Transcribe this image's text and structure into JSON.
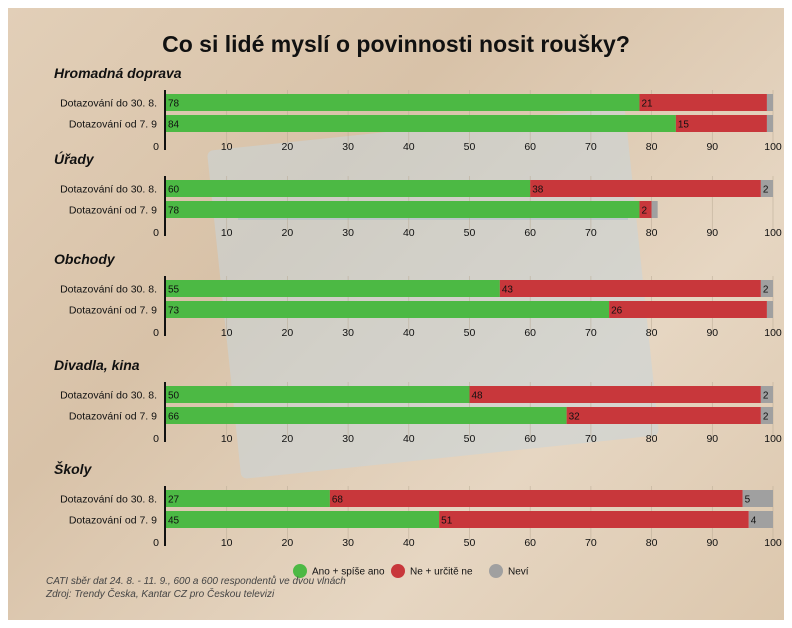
{
  "colors": {
    "yes": "#4cb944",
    "no": "#c8373b",
    "dontknow": "#a0a0a0",
    "text": "#111111"
  },
  "chart_data": {
    "type": "bar",
    "title": "Co si lidé myslí o povinnosti nosit roušky?",
    "orientation": "horizontal",
    "stacked": true,
    "xlim": [
      0,
      100
    ],
    "xticks": [
      0,
      10,
      20,
      30,
      40,
      50,
      60,
      70,
      80,
      90,
      100
    ],
    "legend": {
      "placement": "bottom",
      "items": [
        {
          "label": "Ano + spíše ano",
          "color": "#4cb944"
        },
        {
          "label": "Ne + určitě ne",
          "color": "#c8373b"
        },
        {
          "label": "Neví",
          "color": "#a0a0a0"
        }
      ]
    },
    "groups": [
      {
        "name": "Hromadná doprava",
        "rows": [
          {
            "label": "Dotazování do 30. 8.",
            "yes": 78,
            "no": 21,
            "dontknow": 1,
            "dontknow_label": ""
          },
          {
            "label": "Dotazování od 7. 9",
            "yes": 84,
            "no": 15,
            "dontknow": 1,
            "dontknow_label": ""
          }
        ]
      },
      {
        "name": "Úřady",
        "rows": [
          {
            "label": "Dotazování do 30. 8.",
            "yes": 60,
            "no": 38,
            "dontknow": 2,
            "dontknow_label": "2"
          },
          {
            "label": "Dotazování od 7. 9",
            "yes": 78,
            "no": 2,
            "dontknow": 1,
            "dontknow_label": ""
          }
        ]
      },
      {
        "name": "Obchody",
        "rows": [
          {
            "label": "Dotazování do 30. 8.",
            "yes": 55,
            "no": 43,
            "dontknow": 2,
            "dontknow_label": "2"
          },
          {
            "label": "Dotazování od 7. 9",
            "yes": 73,
            "no": 26,
            "dontknow": 1,
            "dontknow_label": ""
          }
        ]
      },
      {
        "name": "Divadla, kina",
        "rows": [
          {
            "label": "Dotazování do 30. 8.",
            "yes": 50,
            "no": 48,
            "dontknow": 2,
            "dontknow_label": "2"
          },
          {
            "label": "Dotazování od 7. 9",
            "yes": 66,
            "no": 32,
            "dontknow": 2,
            "dontknow_label": "2"
          }
        ]
      },
      {
        "name": "Školy",
        "rows": [
          {
            "label": "Dotazování do 30. 8.",
            "yes": 27,
            "no": 68,
            "dontknow": 5,
            "dontknow_label": "5"
          },
          {
            "label": "Dotazování od 7. 9",
            "yes": 45,
            "no": 51,
            "dontknow": 4,
            "dontknow_label": "4"
          }
        ]
      }
    ]
  },
  "footer": {
    "line1": "CATI sběr dat 24. 8. - 11. 9., 600 a 600 respondentů ve dvou vlnách",
    "line2": "Zdroj: Trendy Česka, Kantar CZ pro Českou televizi"
  }
}
